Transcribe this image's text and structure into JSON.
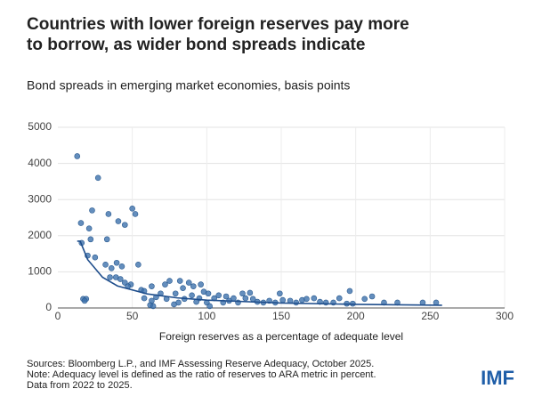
{
  "chart_data": {
    "type": "scatter",
    "title": [
      "Countries with lower foreign reserves pay more",
      "to borrow, as wider bond spreads indicate"
    ],
    "subtitle": "Bond spreads in emerging market economies, basis points",
    "x_label": "Foreign reserves as a percentage of adequate level",
    "notes": [
      "Sources: Bloomberg L.P., and IMF Assessing Reserve Adequacy, October 2025.",
      "Note: Adequacy level is defined as the ratio of reserves to ARA metric in percent.",
      "Data from 2022 to 2025."
    ],
    "logo": "IMF",
    "xlim": [
      0,
      300
    ],
    "xticks": [
      0,
      50,
      100,
      150,
      200,
      250,
      300
    ],
    "ylim": [
      0,
      5000
    ],
    "yticks": [
      0,
      1000,
      2000,
      3000,
      4000,
      5000
    ],
    "grid": true,
    "color": "#3d72ad",
    "x": [
      13,
      27,
      15.5,
      23,
      34,
      50,
      52,
      40.6,
      45,
      21,
      33,
      22,
      16,
      54,
      20,
      25,
      32,
      36,
      39.5,
      43,
      35,
      39,
      42,
      45,
      49,
      47,
      56,
      63,
      72,
      69,
      66,
      58,
      17,
      19,
      18,
      62,
      64,
      63,
      75,
      82,
      84,
      88,
      91,
      96,
      98,
      101,
      95,
      90,
      79,
      85,
      81,
      78,
      105,
      108,
      111,
      115,
      118,
      121,
      124,
      126,
      129,
      131,
      134,
      138,
      142,
      146,
      149,
      151,
      156,
      160,
      164,
      167,
      172,
      176,
      180,
      185,
      189,
      194,
      196,
      198,
      206,
      211,
      219,
      228,
      245,
      254,
      58,
      73,
      93,
      100,
      113,
      102
    ],
    "values": [
      4200,
      3600,
      2350,
      2700,
      2600,
      2750,
      2600,
      2400,
      2300,
      2200,
      1900,
      1900,
      1800,
      1200,
      1450,
      1400,
      1200,
      1100,
      1250,
      1150,
      850,
      850,
      800,
      700,
      650,
      600,
      500,
      600,
      650,
      400,
      300,
      270,
      250,
      250,
      200,
      80,
      50,
      200,
      750,
      750,
      550,
      700,
      600,
      650,
      450,
      400,
      270,
      350,
      400,
      250,
      150,
      100,
      270,
      350,
      150,
      200,
      270,
      150,
      400,
      270,
      420,
      250,
      170,
      150,
      200,
      150,
      400,
      220,
      200,
      150,
      220,
      250,
      270,
      170,
      150,
      150,
      270,
      120,
      470,
      120,
      250,
      320,
      150,
      150,
      150,
      150,
      470,
      250,
      170,
      150,
      320,
      50
    ],
    "trend": {
      "color": "#1f4e8c",
      "x": [
        13,
        15,
        20,
        30,
        40,
        60,
        80,
        100,
        150,
        200,
        258
      ],
      "values": [
        1850,
        1850,
        1340,
        850,
        610,
        390,
        280,
        218,
        137,
        100,
        75
      ]
    }
  }
}
